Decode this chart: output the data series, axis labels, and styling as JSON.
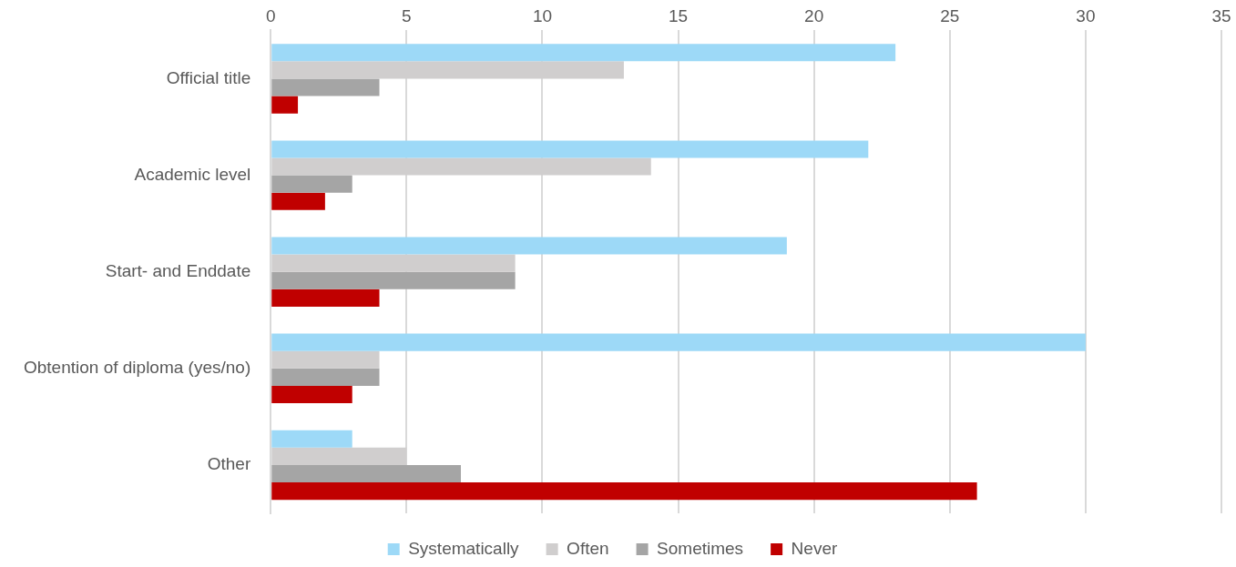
{
  "chart_data": {
    "type": "bar",
    "orientation": "horizontal",
    "categories": [
      "Official title",
      "Academic level",
      "Start- and Enddate",
      "Obtention of diploma (yes/no)",
      "Other"
    ],
    "series": [
      {
        "name": "Systematically",
        "color": "#9dd9f7",
        "values": [
          23,
          22,
          19,
          30,
          3
        ]
      },
      {
        "name": "Often",
        "color": "#d0cece",
        "values": [
          13,
          14,
          9,
          4,
          5
        ]
      },
      {
        "name": "Sometimes",
        "color": "#a5a5a5",
        "values": [
          4,
          3,
          9,
          4,
          7
        ]
      },
      {
        "name": "Never",
        "color": "#c00000",
        "values": [
          1,
          2,
          4,
          3,
          26
        ]
      }
    ],
    "xlim": [
      0,
      35
    ],
    "xticks": [
      0,
      5,
      10,
      15,
      20,
      25,
      30,
      35
    ],
    "grid": "x",
    "legend": "bottom"
  }
}
